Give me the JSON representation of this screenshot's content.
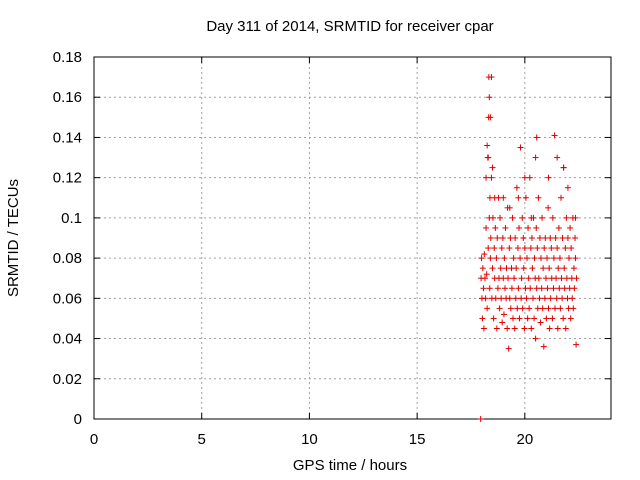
{
  "chart_data": {
    "type": "scatter",
    "title": "Day 311 of 2014, SRMTID for receiver cpar",
    "xlabel": "GPS time / hours",
    "ylabel": "SRMTID / TECUs",
    "xlim": [
      0,
      24
    ],
    "ylim": [
      0,
      0.18
    ],
    "xticks": [
      0,
      5,
      10,
      15,
      20
    ],
    "xtick_labels": [
      "0",
      "5",
      "10",
      "15",
      "20"
    ],
    "yticks": [
      0,
      0.02,
      0.04,
      0.06,
      0.08,
      0.1,
      0.12,
      0.14,
      0.16,
      0.18
    ],
    "ytick_labels": [
      "0",
      "0.02",
      "0.04",
      "0.06",
      "0.08",
      "0.1",
      "0.12",
      "0.14",
      "0.16",
      "0.18"
    ],
    "grid": true,
    "marker": "+",
    "color": "#e00000",
    "series": [
      {
        "name": "SRMTID",
        "x": [
          17.95,
          17.97,
          17.99,
          18.01,
          18.03,
          18.05,
          18.08,
          18.1,
          18.12,
          18.15,
          18.18,
          18.2,
          18.23,
          18.25,
          18.28,
          18.3,
          18.32,
          18.33,
          18.35,
          18.37,
          18.38,
          18.4,
          18.42,
          18.45,
          18.47,
          18.5,
          18.52,
          18.55,
          18.58,
          18.6,
          18.63,
          18.65,
          18.68,
          18.7,
          18.72,
          18.75,
          18.78,
          18.8,
          18.83,
          18.85,
          18.88,
          18.9,
          18.93,
          18.95,
          18.98,
          19.0,
          19.03,
          19.05,
          19.08,
          19.1,
          19.13,
          19.15,
          19.18,
          19.2,
          19.22,
          19.25,
          19.28,
          19.3,
          19.33,
          19.35,
          19.38,
          19.4,
          19.43,
          19.45,
          19.48,
          19.5,
          19.53,
          19.55,
          19.58,
          19.6,
          19.63,
          19.65,
          19.68,
          19.7,
          19.73,
          19.75,
          19.78,
          19.8,
          19.83,
          19.85,
          19.88,
          19.9,
          19.93,
          19.95,
          19.98,
          20.0,
          20.03,
          20.05,
          20.08,
          20.1,
          20.13,
          20.15,
          20.18,
          20.2,
          20.23,
          20.25,
          20.28,
          20.3,
          20.33,
          20.35,
          20.38,
          20.4,
          20.43,
          20.45,
          20.48,
          20.5,
          20.53,
          20.55,
          20.58,
          20.6,
          20.63,
          20.65,
          20.68,
          20.7,
          20.73,
          20.75,
          20.78,
          20.8,
          20.83,
          20.85,
          20.88,
          20.9,
          20.93,
          20.95,
          20.98,
          21.0,
          21.03,
          21.05,
          21.08,
          21.1,
          21.13,
          21.15,
          21.18,
          21.2,
          21.23,
          21.25,
          21.28,
          21.3,
          21.33,
          21.35,
          21.38,
          21.4,
          21.43,
          21.45,
          21.48,
          21.5,
          21.53,
          21.55,
          21.58,
          21.6,
          21.63,
          21.65,
          21.68,
          21.7,
          21.73,
          21.75,
          21.78,
          21.8,
          21.83,
          21.85,
          21.88,
          21.9,
          21.93,
          21.95,
          21.98,
          22.0,
          22.03,
          22.05,
          22.08,
          22.1,
          22.13,
          22.15,
          22.18,
          22.2,
          22.23,
          22.25,
          22.28,
          22.3,
          22.33,
          22.35,
          22.38,
          22.4,
          18.25,
          18.3,
          18.35,
          18.2,
          18.4,
          18.5,
          18.6,
          20.5,
          20.55,
          21.1,
          21.5,
          21.8,
          22.0,
          20.0,
          19.7,
          19.3,
          22.35,
          18.45,
          19.0,
          20.3
        ],
        "y": [
          0.0,
          0.07,
          0.08,
          0.06,
          0.05,
          0.075,
          0.065,
          0.045,
          0.082,
          0.07,
          0.06,
          0.095,
          0.072,
          0.055,
          0.13,
          0.085,
          0.15,
          0.17,
          0.1,
          0.065,
          0.11,
          0.08,
          0.09,
          0.12,
          0.06,
          0.075,
          0.1,
          0.05,
          0.085,
          0.07,
          0.095,
          0.06,
          0.08,
          0.045,
          0.09,
          0.065,
          0.11,
          0.07,
          0.055,
          0.1,
          0.075,
          0.06,
          0.085,
          0.048,
          0.09,
          0.07,
          0.052,
          0.08,
          0.065,
          0.095,
          0.06,
          0.075,
          0.045,
          0.105,
          0.07,
          0.035,
          0.085,
          0.06,
          0.09,
          0.055,
          0.075,
          0.065,
          0.1,
          0.05,
          0.08,
          0.07,
          0.045,
          0.09,
          0.06,
          0.075,
          0.115,
          0.055,
          0.085,
          0.065,
          0.095,
          0.05,
          0.08,
          0.135,
          0.06,
          0.07,
          0.1,
          0.055,
          0.09,
          0.075,
          0.045,
          0.085,
          0.065,
          0.11,
          0.06,
          0.08,
          0.05,
          0.095,
          0.07,
          0.055,
          0.12,
          0.065,
          0.085,
          0.045,
          0.09,
          0.075,
          0.06,
          0.1,
          0.05,
          0.08,
          0.07,
          0.04,
          0.095,
          0.065,
          0.085,
          0.055,
          0.11,
          0.07,
          0.06,
          0.09,
          0.048,
          0.08,
          0.065,
          0.1,
          0.055,
          0.075,
          0.036,
          0.085,
          0.06,
          0.09,
          0.07,
          0.05,
          0.08,
          0.065,
          0.105,
          0.055,
          0.075,
          0.045,
          0.09,
          0.06,
          0.085,
          0.07,
          0.05,
          0.1,
          0.065,
          0.08,
          0.141,
          0.055,
          0.09,
          0.07,
          0.06,
          0.085,
          0.045,
          0.075,
          0.095,
          0.065,
          0.08,
          0.055,
          0.11,
          0.07,
          0.06,
          0.09,
          0.05,
          0.125,
          0.075,
          0.065,
          0.085,
          0.045,
          0.1,
          0.07,
          0.06,
          0.09,
          0.055,
          0.08,
          0.065,
          0.095,
          0.05,
          0.085,
          0.07,
          0.06,
          0.1,
          0.055,
          0.075,
          0.065,
          0.09,
          0.08,
          0.037,
          0.07,
          0.136,
          0.13,
          0.16,
          0.12,
          0.15,
          0.125,
          0.11,
          0.13,
          0.14,
          0.12,
          0.13,
          0.125,
          0.115,
          0.12,
          0.11,
          0.105,
          0.1,
          0.17,
          0.11,
          0.1
        ]
      }
    ]
  }
}
